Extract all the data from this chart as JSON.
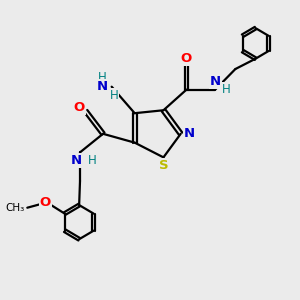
{
  "bg_color": "#ebebeb",
  "atom_colors": {
    "C": "#000000",
    "N": "#0000cc",
    "O": "#ff0000",
    "S": "#bbbb00",
    "H": "#008080"
  }
}
